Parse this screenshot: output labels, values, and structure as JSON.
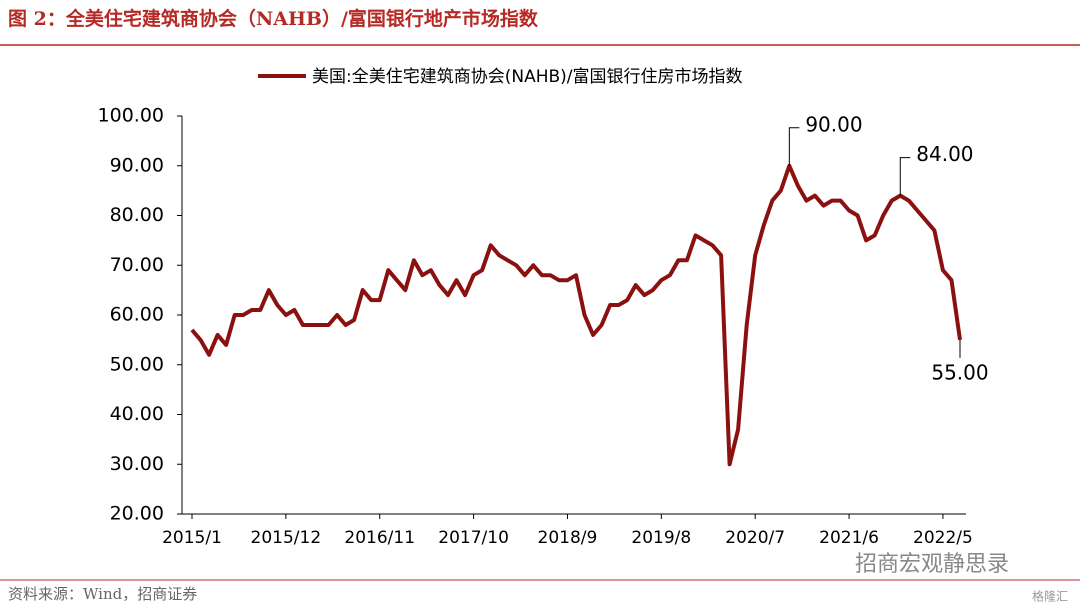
{
  "header": {
    "title": "图 2：全美住宅建筑商协会（NAHB）/富国银行地产市场指数"
  },
  "chart_data": {
    "type": "line",
    "categories": [
      "2015/1",
      null,
      null,
      null,
      null,
      null,
      null,
      null,
      null,
      null,
      null,
      "2015/12",
      null,
      null,
      null,
      null,
      null,
      null,
      null,
      null,
      null,
      null,
      "2016/11",
      null,
      null,
      null,
      null,
      null,
      null,
      null,
      null,
      null,
      null,
      "2017/10",
      null,
      null,
      null,
      null,
      null,
      null,
      null,
      null,
      null,
      null,
      "2018/9",
      null,
      null,
      null,
      null,
      null,
      null,
      null,
      null,
      null,
      null,
      "2019/8",
      null,
      null,
      null,
      null,
      null,
      null,
      null,
      null,
      null,
      null,
      "2020/7",
      null,
      null,
      null,
      null,
      null,
      null,
      null,
      null,
      null,
      null,
      "2021/6",
      null,
      null,
      null,
      null,
      null,
      null,
      null,
      null,
      null,
      null,
      "2022/5",
      null,
      null
    ],
    "series": [
      {
        "name": "美国:全美住宅建筑商协会(NAHB)/富国银行住房市场指数",
        "color": "#8b1010",
        "values": [
          57,
          55,
          52,
          56,
          54,
          60,
          60,
          61,
          61,
          65,
          62,
          60,
          61,
          58,
          58,
          58,
          58,
          60,
          58,
          59,
          65,
          63,
          63,
          69,
          67,
          65,
          71,
          68,
          69,
          66,
          64,
          67,
          64,
          68,
          69,
          74,
          72,
          71,
          70,
          68,
          70,
          68,
          68,
          67,
          67,
          68,
          60,
          56,
          58,
          62,
          62,
          63,
          66,
          64,
          65,
          67,
          68,
          71,
          71,
          76,
          75,
          74,
          72,
          30,
          37,
          58,
          72,
          78,
          83,
          85,
          90,
          86,
          83,
          84,
          82,
          83,
          83,
          81,
          80,
          75,
          76,
          80,
          83,
          84,
          83,
          81,
          79,
          77,
          69,
          67,
          55
        ],
        "value_labels": [
          null,
          null,
          null,
          null,
          null,
          null,
          null,
          null,
          null,
          null,
          null,
          null,
          null,
          null,
          null,
          null,
          null,
          null,
          null,
          null,
          null,
          null,
          null,
          null,
          null,
          null,
          null,
          null,
          null,
          null,
          null,
          null,
          null,
          null,
          null,
          null,
          null,
          null,
          null,
          null,
          null,
          null,
          null,
          null,
          null,
          null,
          null,
          null,
          null,
          null,
          null,
          null,
          null,
          null,
          null,
          null,
          null,
          null,
          null,
          null,
          null,
          null,
          null,
          null,
          null,
          null,
          null,
          null,
          null,
          null,
          "90.00",
          null,
          null,
          null,
          null,
          null,
          null,
          null,
          null,
          null,
          null,
          null,
          null,
          "84.00",
          null,
          null,
          null,
          null,
          null,
          null,
          "55.00"
        ]
      }
    ],
    "ylim": [
      20,
      100
    ],
    "yticks": [
      {
        "value": 20,
        "label": "20.00"
      },
      {
        "value": 30,
        "label": "30.00"
      },
      {
        "value": 40,
        "label": "40.00"
      },
      {
        "value": 50,
        "label": "50.00"
      },
      {
        "value": 60,
        "label": "60.00"
      },
      {
        "value": 70,
        "label": "70.00"
      },
      {
        "value": 80,
        "label": "80.00"
      },
      {
        "value": 90,
        "label": "90.00"
      },
      {
        "value": 100,
        "label": "100.00"
      }
    ],
    "legend": "top"
  },
  "footer": {
    "source": "资料来源：Wind，招商证券",
    "watermark": "招商宏观静思录",
    "logo": "格隆汇"
  }
}
